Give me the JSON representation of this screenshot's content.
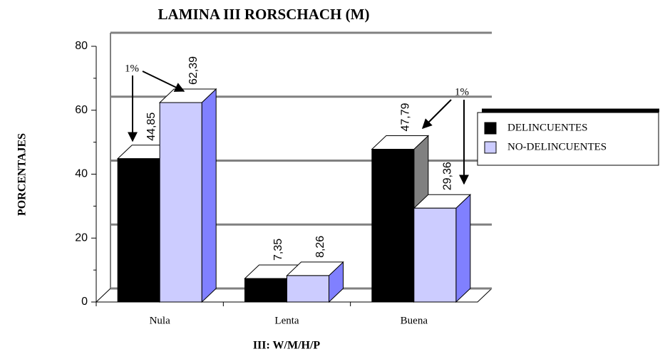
{
  "chart_data": {
    "type": "bar3d",
    "title": "LAMINA III RORSCHACH (M)",
    "x_label": "III: W/M/H/P",
    "y_label": "PORCENTAJES",
    "categories": [
      "Nula",
      "Lenta",
      "Buena"
    ],
    "series": [
      {
        "name": "DELINCUENTES",
        "color": "#000000",
        "side_color": "#808080",
        "values": [
          44.85,
          7.35,
          47.79
        ],
        "value_labels": [
          "44,85",
          "7,35",
          "47,79"
        ]
      },
      {
        "name": "NO-DELINCUENTES",
        "color": "#ccccff",
        "side_color": "#8080ff",
        "values": [
          62.39,
          8.26,
          29.36
        ],
        "value_labels": [
          "62,39",
          "8,26",
          "29,36"
        ]
      }
    ],
    "annotations": [
      "1%",
      "1%"
    ],
    "ylim": [
      0,
      80
    ],
    "yticks": [
      0,
      20,
      40,
      60,
      80
    ],
    "grid": true
  }
}
